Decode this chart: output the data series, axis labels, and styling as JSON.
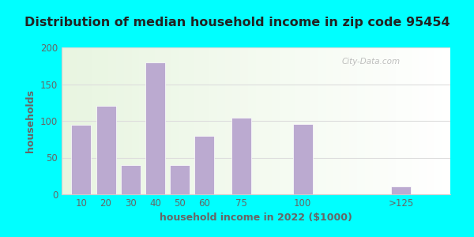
{
  "title": "Distribution of median household income in zip code 95454",
  "xlabel": "household income in 2022 ($1000)",
  "ylabel": "households",
  "categories": [
    "10",
    "20",
    "30",
    "40",
    "50",
    "60",
    "75",
    "100",
    ">125"
  ],
  "x_positions": [
    10,
    20,
    30,
    40,
    50,
    60,
    75,
    100,
    140
  ],
  "values": [
    95,
    120,
    40,
    180,
    40,
    80,
    104,
    96,
    11
  ],
  "bar_widths": [
    8,
    8,
    8,
    8,
    8,
    8,
    8,
    8,
    8
  ],
  "bar_color": "#bbaad0",
  "background_outer": "#00ffff",
  "background_inner": "#e8f5e0",
  "background_right": "#f0f5ee",
  "ylim": [
    0,
    200
  ],
  "yticks": [
    0,
    50,
    100,
    150,
    200
  ],
  "title_fontsize": 11.5,
  "label_fontsize": 9,
  "tick_fontsize": 8.5,
  "watermark": "City-Data.com",
  "grid_color": "#dddddd",
  "spine_color": "#cccccc",
  "text_color": "#666666"
}
